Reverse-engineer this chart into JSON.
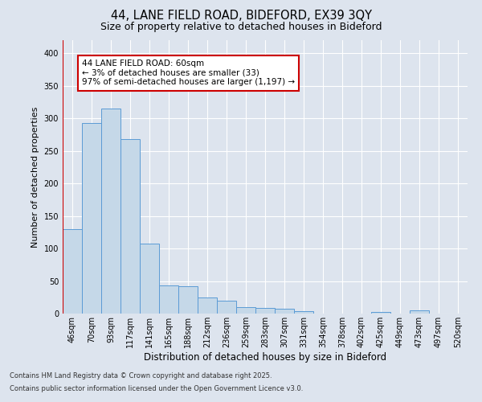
{
  "title_line1": "44, LANE FIELD ROAD, BIDEFORD, EX39 3QY",
  "title_line2": "Size of property relative to detached houses in Bideford",
  "xlabel": "Distribution of detached houses by size in Bideford",
  "ylabel": "Number of detached properties",
  "categories": [
    "46sqm",
    "70sqm",
    "93sqm",
    "117sqm",
    "141sqm",
    "165sqm",
    "188sqm",
    "212sqm",
    "236sqm",
    "259sqm",
    "283sqm",
    "307sqm",
    "331sqm",
    "354sqm",
    "378sqm",
    "402sqm",
    "425sqm",
    "449sqm",
    "473sqm",
    "497sqm",
    "520sqm"
  ],
  "values": [
    130,
    293,
    315,
    268,
    108,
    43,
    42,
    25,
    20,
    10,
    9,
    7,
    4,
    0,
    0,
    0,
    3,
    0,
    5,
    0,
    0
  ],
  "bar_color": "#c5d8e8",
  "bar_edge_color": "#5b9bd5",
  "annotation_box_color": "#ffffff",
  "annotation_border_color": "#cc0000",
  "vline_color": "#cc0000",
  "annotation_line1": "44 LANE FIELD ROAD: 60sqm",
  "annotation_line2": "← 3% of detached houses are smaller (33)",
  "annotation_line3": "97% of semi-detached houses are larger (1,197) →",
  "ylim": [
    0,
    420
  ],
  "yticks": [
    0,
    50,
    100,
    150,
    200,
    250,
    300,
    350,
    400
  ],
  "footer_line1": "Contains HM Land Registry data © Crown copyright and database right 2025.",
  "footer_line2": "Contains public sector information licensed under the Open Government Licence v3.0.",
  "background_color": "#dde4ee",
  "plot_bg_color": "#dde4ee",
  "grid_color": "#ffffff",
  "title_fontsize": 10.5,
  "subtitle_fontsize": 9,
  "ylabel_fontsize": 8,
  "xlabel_fontsize": 8.5,
  "tick_fontsize": 7,
  "annotation_fontsize": 7.5,
  "footer_fontsize": 6
}
